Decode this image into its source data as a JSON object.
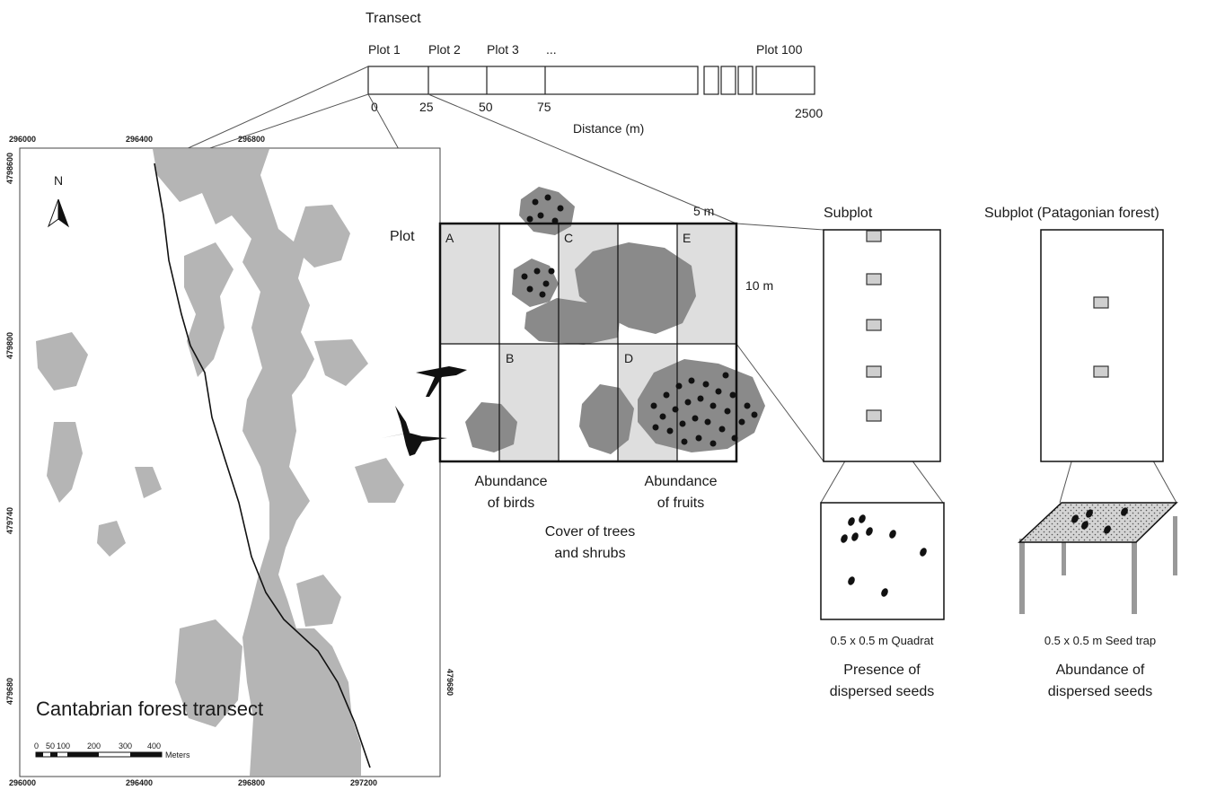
{
  "transect": {
    "title": "Transect",
    "plots": [
      "Plot 1",
      "Plot 2",
      "Plot 3",
      "...",
      "Plot 100"
    ],
    "distances": [
      "0",
      "25",
      "50",
      "75",
      "2500"
    ],
    "distance_label": "Distance (m)"
  },
  "map": {
    "title": "Cantabrian forest transect",
    "north": "N",
    "x_ticks_top": [
      "296000",
      "296400",
      "296800"
    ],
    "x_ticks_bottom": [
      "296000",
      "296400",
      "296800",
      "297200"
    ],
    "y_ticks_left": [
      "4798600",
      "479800",
      "479740",
      "479680"
    ],
    "y_ticks_right": [
      "479680"
    ],
    "scale_ticks": [
      "0",
      "50",
      "100",
      "200",
      "300",
      "400"
    ],
    "scale_unit": "Meters"
  },
  "plot": {
    "label": "Plot",
    "cells": [
      "A",
      "B",
      "C",
      "D",
      "E"
    ],
    "width_label": "5 m",
    "height_label": "10 m",
    "captions": {
      "birds": [
        "Abundance",
        "of birds"
      ],
      "fruits": [
        "Abundance",
        "of fruits"
      ],
      "cover": [
        "Cover of trees",
        "and shrubs"
      ]
    }
  },
  "subplot": {
    "title": "Subplot",
    "quadrat_label": "0.5 x 0.5 m Quadrat",
    "caption": [
      "Presence of",
      "dispersed seeds"
    ]
  },
  "subplot_patagonian": {
    "title": "Subplot (Patagonian forest)",
    "trap_label": "0.5 x 0.5 m Seed trap",
    "caption": [
      "Abundance of",
      "dispersed seeds"
    ]
  },
  "colors": {
    "forest": "#b5b5b5",
    "light_cell": "#dedede",
    "shrub": "#8a8a8a",
    "ink": "#1a1a1a"
  }
}
